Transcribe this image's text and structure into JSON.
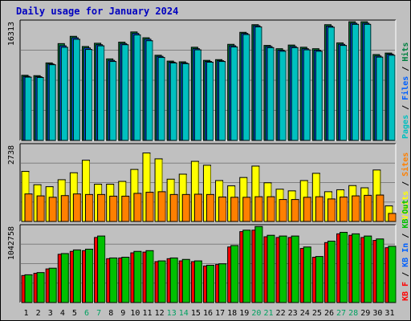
{
  "page_title": "Daily usage for January 2024",
  "colors": {
    "background": "#c0c0c0",
    "title": "#0000c0",
    "pages": "#00c0c0",
    "files": "#0060ff",
    "hits": "#008040",
    "visits": "#ffff00",
    "sites": "#ff8000",
    "kb_in": "#00c000",
    "kb_out": "#00a000",
    "kb_f": "#ff0000"
  },
  "chart_data": [
    {
      "type": "bar",
      "title": "Daily usage for January 2024",
      "ylabel_parts": [
        {
          "text": "Pages",
          "color": "#00c0c0"
        },
        {
          "text": "Files",
          "color": "#0060ff"
        },
        {
          "text": "Hits",
          "color": "#008040"
        }
      ],
      "ymax_label": "16313",
      "ylim": [
        0,
        16313
      ],
      "x": [
        "1",
        "2",
        "3",
        "4",
        "5",
        "6",
        "7",
        "8",
        "9",
        "10",
        "11",
        "12",
        "13",
        "14",
        "15",
        "16",
        "17",
        "18",
        "19",
        "20",
        "21",
        "22",
        "23",
        "24",
        "25",
        "26",
        "27",
        "28",
        "29",
        "30",
        "31"
      ],
      "weekend_days": [
        "6",
        "7",
        "13",
        "14",
        "20",
        "21",
        "27",
        "28"
      ],
      "series": [
        {
          "name": "Hits",
          "color": "#008040",
          "values": [
            8950,
            8900,
            10650,
            13300,
            14300,
            12900,
            13350,
            11200,
            13500,
            14900,
            14100,
            11700,
            10900,
            10800,
            12800,
            11000,
            11100,
            13200,
            14850,
            15900,
            13050,
            12600,
            13100,
            12800,
            12600,
            15900,
            13400,
            16300,
            16300,
            11800,
            12000
          ]
        },
        {
          "name": "Files",
          "color": "#0060ff",
          "values": [
            8800,
            8750,
            10500,
            13000,
            14100,
            12700,
            13150,
            11000,
            13300,
            14700,
            13900,
            11550,
            10750,
            10650,
            12600,
            10850,
            10950,
            13000,
            14700,
            15750,
            12900,
            12400,
            12900,
            12600,
            12400,
            15700,
            13200,
            16100,
            16100,
            11600,
            11850
          ]
        },
        {
          "name": "Pages",
          "color": "#00c0c0",
          "values": [
            8700,
            8650,
            10400,
            12800,
            13900,
            12500,
            13000,
            10850,
            13150,
            14500,
            13700,
            11400,
            10650,
            10550,
            12450,
            10750,
            10850,
            12850,
            14550,
            15600,
            12750,
            12250,
            12750,
            12450,
            12250,
            15550,
            13050,
            15950,
            15950,
            11450,
            11700
          ]
        }
      ]
    },
    {
      "type": "bar",
      "ylabel_parts": [
        {
          "text": "Visits",
          "color": "#ffff00"
        },
        {
          "text": "Sites",
          "color": "#ff8000"
        }
      ],
      "ymax_label": "2738",
      "ylim": [
        0,
        2738
      ],
      "x": [
        "1",
        "2",
        "3",
        "4",
        "5",
        "6",
        "7",
        "8",
        "9",
        "10",
        "11",
        "12",
        "13",
        "14",
        "15",
        "16",
        "17",
        "18",
        "19",
        "20",
        "21",
        "22",
        "23",
        "24",
        "25",
        "26",
        "27",
        "28",
        "29",
        "30",
        "31"
      ],
      "series": [
        {
          "name": "Visits",
          "color": "#ffff00",
          "values": [
            1800,
            1320,
            1250,
            1500,
            1750,
            2200,
            1340,
            1340,
            1440,
            1870,
            2460,
            2250,
            1520,
            1700,
            2160,
            2020,
            1470,
            1280,
            1580,
            1990,
            1390,
            1160,
            1100,
            1470,
            1730,
            1070,
            1140,
            1290,
            1210,
            1850,
            560
          ]
        },
        {
          "name": "Sites",
          "color": "#ff8000",
          "values": [
            990,
            920,
            870,
            930,
            990,
            970,
            970,
            910,
            910,
            1010,
            1050,
            1070,
            970,
            970,
            980,
            970,
            880,
            870,
            870,
            890,
            890,
            790,
            790,
            870,
            890,
            810,
            880,
            920,
            940,
            950,
            290
          ]
        }
      ]
    },
    {
      "type": "bar",
      "ylabel_parts": [
        {
          "text": "KB F",
          "color": "#ff0000"
        },
        {
          "text": "KB In",
          "color": "#0060ff"
        },
        {
          "text": "KB Out",
          "color": "#00c000"
        }
      ],
      "ymax_label": "1042758",
      "ylim": [
        0,
        1042758
      ],
      "x": [
        "1",
        "2",
        "3",
        "4",
        "5",
        "6",
        "7",
        "8",
        "9",
        "10",
        "11",
        "12",
        "13",
        "14",
        "15",
        "16",
        "17",
        "18",
        "19",
        "20",
        "21",
        "22",
        "23",
        "24",
        "25",
        "26",
        "27",
        "28",
        "29",
        "30",
        "31"
      ],
      "series": [
        {
          "name": "KB F",
          "color": "#ff0000",
          "values": [
            370000,
            400000,
            460000,
            660000,
            700000,
            710000,
            890000,
            600000,
            610000,
            680000,
            690000,
            560000,
            600000,
            570000,
            560000,
            500000,
            520000,
            760000,
            970000,
            990000,
            900000,
            890000,
            890000,
            740000,
            620000,
            820000,
            940000,
            920000,
            890000,
            850000,
            750000
          ]
        },
        {
          "name": "KB Out",
          "color": "#00c000",
          "values": [
            380000,
            410000,
            470000,
            670000,
            720000,
            730000,
            910000,
            610000,
            620000,
            700000,
            710000,
            570000,
            610000,
            590000,
            570000,
            510000,
            530000,
            780000,
            990000,
            1040000,
            920000,
            910000,
            910000,
            760000,
            630000,
            840000,
            960000,
            940000,
            910000,
            870000,
            770000
          ]
        }
      ]
    }
  ]
}
